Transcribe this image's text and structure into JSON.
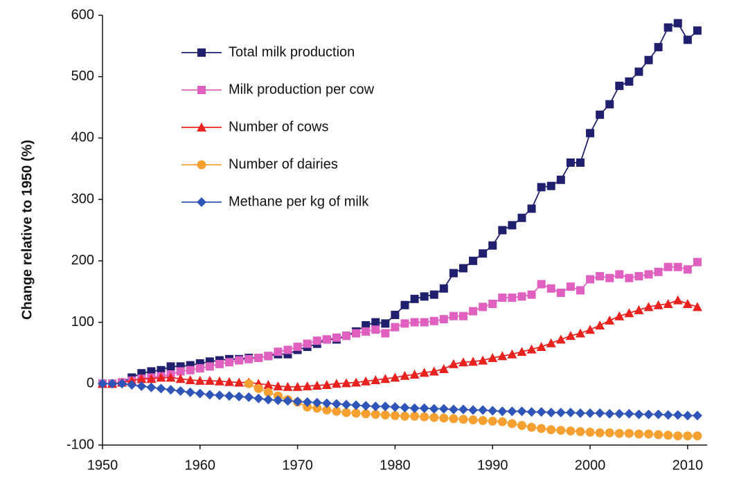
{
  "chart_data": {
    "type": "line",
    "ylabel": "Change relative to 1950 (%)",
    "x": [
      1950,
      1951,
      1952,
      1953,
      1954,
      1955,
      1956,
      1957,
      1958,
      1959,
      1960,
      1961,
      1962,
      1963,
      1964,
      1965,
      1966,
      1967,
      1968,
      1969,
      1970,
      1971,
      1972,
      1973,
      1974,
      1975,
      1976,
      1977,
      1978,
      1979,
      1980,
      1981,
      1982,
      1983,
      1984,
      1985,
      1986,
      1987,
      1988,
      1989,
      1990,
      1991,
      1992,
      1993,
      1994,
      1995,
      1996,
      1997,
      1998,
      1999,
      2000,
      2001,
      2002,
      2003,
      2004,
      2005,
      2006,
      2007,
      2008,
      2009,
      2010,
      2011
    ],
    "series": [
      {
        "name": "Total milk production",
        "color": "#20206e",
        "marker": "square",
        "values": [
          0,
          0,
          2,
          10,
          17,
          20,
          22,
          28,
          28,
          30,
          33,
          36,
          38,
          40,
          40,
          42,
          42,
          45,
          48,
          48,
          55,
          60,
          65,
          72,
          72,
          78,
          85,
          95,
          100,
          98,
          112,
          128,
          138,
          142,
          145,
          155,
          180,
          188,
          200,
          212,
          225,
          250,
          258,
          270,
          285,
          320,
          322,
          332,
          360,
          360,
          408,
          438,
          455,
          485,
          492,
          508,
          527,
          548,
          580,
          587,
          560,
          575
        ]
      },
      {
        "name": "Milk production per cow",
        "color": "#e060c0",
        "marker": "square",
        "values": [
          0,
          0,
          2,
          5,
          8,
          10,
          12,
          15,
          20,
          22,
          25,
          28,
          32,
          35,
          38,
          40,
          42,
          45,
          52,
          55,
          60,
          65,
          70,
          72,
          75,
          78,
          82,
          85,
          88,
          82,
          92,
          98,
          100,
          100,
          102,
          105,
          110,
          110,
          118,
          125,
          130,
          140,
          140,
          142,
          145,
          162,
          155,
          148,
          158,
          152,
          170,
          175,
          172,
          178,
          172,
          175,
          178,
          182,
          190,
          190,
          186,
          198
        ]
      },
      {
        "name": "Number of cows",
        "color": "#e8231f",
        "marker": "triangle",
        "values": [
          0,
          0,
          2,
          5,
          8,
          8,
          10,
          10,
          8,
          6,
          5,
          5,
          4,
          3,
          2,
          2,
          0,
          -2,
          -4,
          -5,
          -5,
          -4,
          -3,
          -2,
          0,
          1,
          2,
          4,
          6,
          8,
          10,
          13,
          15,
          18,
          20,
          24,
          32,
          35,
          36,
          38,
          42,
          45,
          48,
          52,
          56,
          60,
          66,
          72,
          78,
          82,
          88,
          95,
          103,
          110,
          115,
          120,
          125,
          128,
          130,
          136,
          130,
          125
        ]
      },
      {
        "name": "Number of dairies",
        "color": "#f5a030",
        "marker": "circle",
        "values": [
          null,
          null,
          null,
          null,
          null,
          null,
          null,
          null,
          null,
          null,
          null,
          null,
          null,
          null,
          null,
          0,
          -8,
          -14,
          -20,
          -26,
          -30,
          -38,
          -40,
          -43,
          -45,
          -47,
          -48,
          -49,
          -50,
          -51,
          -52,
          -53,
          -53,
          -54,
          -55,
          -56,
          -57,
          -58,
          -59,
          -60,
          -61,
          -62,
          -65,
          -68,
          -71,
          -73,
          -75,
          -76,
          -77,
          -78,
          -79,
          -80,
          -80,
          -81,
          -81,
          -82,
          -82,
          -83,
          -84,
          -85,
          -85,
          -85
        ]
      },
      {
        "name": "Methane per kg of milk",
        "color": "#2f55b8",
        "marker": "diamond",
        "values": [
          0,
          0,
          0,
          -2,
          -4,
          -6,
          -8,
          -10,
          -12,
          -14,
          -16,
          -18,
          -19,
          -20,
          -21,
          -22,
          -24,
          -26,
          -27,
          -28,
          -29,
          -30,
          -31,
          -32,
          -33,
          -34,
          -35,
          -36,
          -37,
          -37,
          -38,
          -39,
          -40,
          -40,
          -41,
          -41,
          -42,
          -42,
          -43,
          -43,
          -44,
          -45,
          -45,
          -45,
          -46,
          -46,
          -47,
          -47,
          -47,
          -48,
          -48,
          -48,
          -49,
          -49,
          -49,
          -50,
          -50,
          -50,
          -51,
          -51,
          -52,
          -52
        ]
      }
    ],
    "xlim": [
      1950,
      2012
    ],
    "xticks": [
      1950,
      1960,
      1970,
      1980,
      1990,
      2000,
      2010
    ],
    "ylim": [
      -100,
      600
    ],
    "yticks": [
      -100,
      0,
      100,
      200,
      300,
      400,
      500,
      600
    ],
    "legend": "upper left"
  }
}
